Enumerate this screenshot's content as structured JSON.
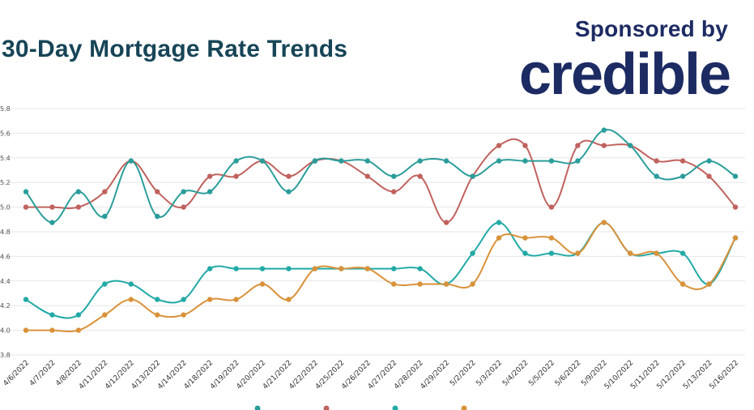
{
  "header": {
    "title": "30-Day Mortgage Rate Trends",
    "sponsor_text": "Sponsored by",
    "logo_text": "credible"
  },
  "colors": {
    "title": "#174557",
    "logo": "#1d2b63",
    "grid": "#e6e6e6"
  },
  "chart_data": {
    "type": "line",
    "categories": [
      "4/6/2022",
      "4/7/2022",
      "4/8/2022",
      "4/11/2022",
      "4/12/2022",
      "4/13/2022",
      "4/14/2022",
      "4/18/2022",
      "4/19/2022",
      "4/20/2022",
      "4/21/2022",
      "4/22/2022",
      "4/25/2022",
      "4/26/2022",
      "4/27/2022",
      "4/28/2022",
      "4/29/2022",
      "5/2/2022",
      "5/3/2022",
      "5/4/2022",
      "5/5/2022",
      "5/6/2022",
      "5/9/2022",
      "5/10/2022",
      "5/11/2022",
      "5/12/2022",
      "5/13/2022",
      "5/16/2022"
    ],
    "y_ticks": [
      "3.8",
      "4.0",
      "4.2",
      "4.4",
      "4.6",
      "4.8",
      "5.0",
      "5.2",
      "5.4",
      "5.6",
      "5.8"
    ],
    "ylim": [
      3.8,
      5.8
    ],
    "grid": true,
    "legend_position": "bottom",
    "series": [
      {
        "name": "",
        "color": "#2a9d9a",
        "values": [
          5.125,
          4.875,
          5.125,
          4.925,
          5.375,
          4.925,
          5.125,
          5.125,
          5.375,
          5.375,
          5.125,
          5.375,
          5.375,
          5.375,
          5.25,
          5.375,
          5.375,
          5.25,
          5.375,
          5.375,
          5.375,
          5.375,
          5.625,
          5.5,
          5.25,
          5.25,
          5.375,
          5.25
        ]
      },
      {
        "name": "",
        "color": "#c0625e",
        "values": [
          5.0,
          5.0,
          5.0,
          5.125,
          5.375,
          5.125,
          5.0,
          5.25,
          5.25,
          5.375,
          5.25,
          5.375,
          5.375,
          5.25,
          5.125,
          5.25,
          4.875,
          5.25,
          5.5,
          5.5,
          5.0,
          5.5,
          5.5,
          5.5,
          5.375,
          5.375,
          5.25,
          5.0
        ]
      },
      {
        "name": "",
        "color": "#22aaa6",
        "values": [
          4.25,
          4.125,
          4.125,
          4.375,
          4.375,
          4.25,
          4.25,
          4.5,
          4.5,
          4.5,
          4.5,
          4.5,
          4.5,
          4.5,
          4.5,
          4.5,
          4.375,
          4.625,
          4.875,
          4.625,
          4.625,
          4.625,
          4.875,
          4.625,
          4.625,
          4.625,
          4.375,
          4.75
        ]
      },
      {
        "name": "",
        "color": "#d9923a",
        "values": [
          4.0,
          4.0,
          4.0,
          4.125,
          4.25,
          4.125,
          4.125,
          4.25,
          4.25,
          4.375,
          4.25,
          4.5,
          4.5,
          4.5,
          4.375,
          4.375,
          4.375,
          4.375,
          4.75,
          4.75,
          4.75,
          4.625,
          4.875,
          4.625,
          4.625,
          4.375,
          4.375,
          4.75
        ]
      }
    ]
  }
}
